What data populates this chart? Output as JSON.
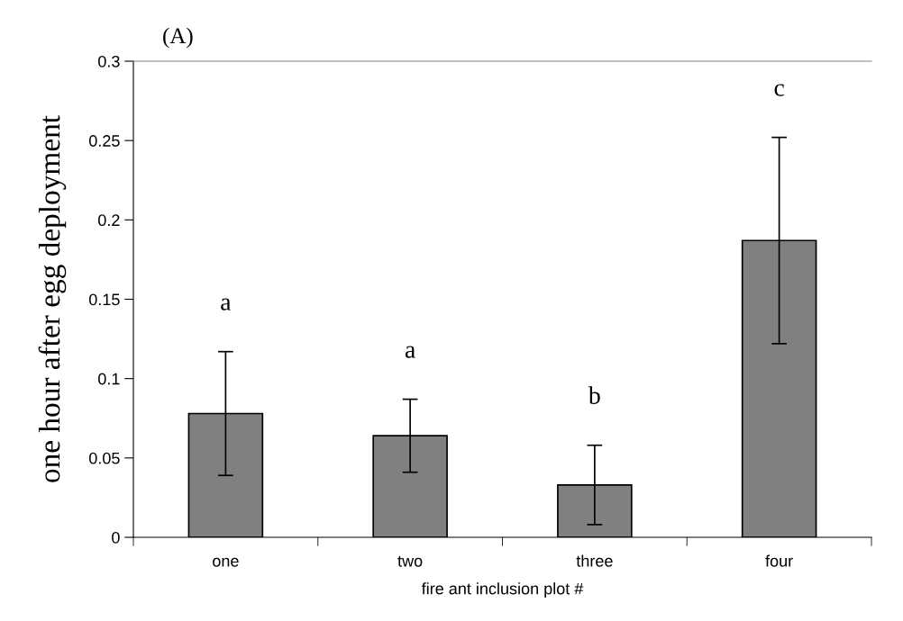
{
  "chart_data": {
    "type": "bar",
    "title": "(A)",
    "xlabel": "fire ant inclusion plot #",
    "ylabel": "one hour after egg deployment",
    "categories": [
      "one",
      "two",
      "three",
      "four"
    ],
    "values": [
      0.078,
      0.064,
      0.033,
      0.187
    ],
    "errors": [
      0.039,
      0.023,
      0.025,
      0.065
    ],
    "color": "#808080",
    "ylim": [
      0,
      0.3
    ],
    "yticks": [
      0,
      0.05,
      0.1,
      0.15,
      0.2,
      0.25,
      0.3
    ],
    "annotations": [
      "a",
      "a",
      "b",
      "c"
    ],
    "grid": false,
    "legend": false
  }
}
